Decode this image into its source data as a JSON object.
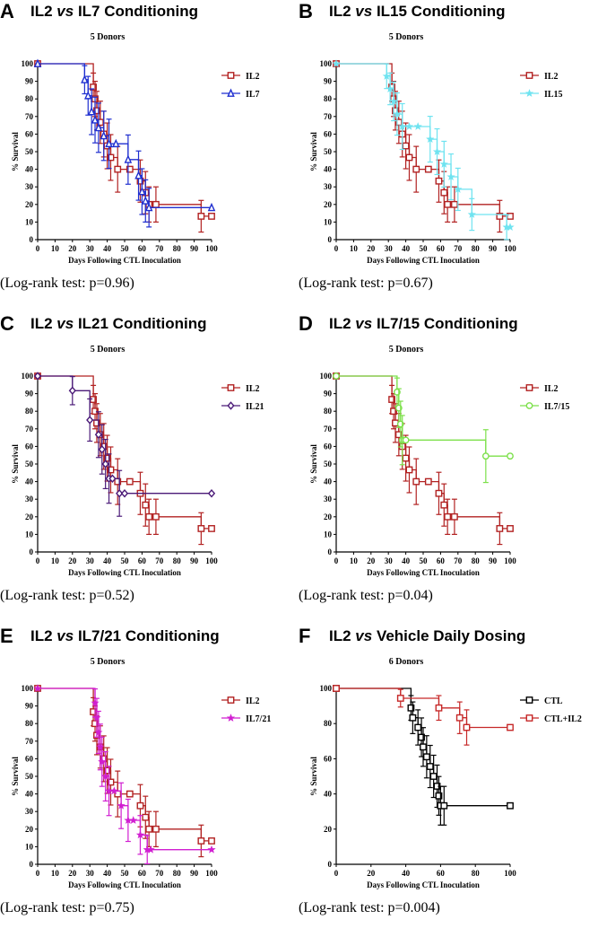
{
  "panels": [
    {
      "letter": "A",
      "title_a": "IL2 ",
      "title_vs": "vs",
      "title_b": " IL7 Conditioning",
      "donors": "5 Donors",
      "logrank": "(Log-rank test: p=0.96)"
    },
    {
      "letter": "B",
      "title_a": "IL2 ",
      "title_vs": "vs",
      "title_b": " IL15 Conditioning",
      "donors": "5 Donors",
      "logrank": "(Log-rank test: p=0.67)"
    },
    {
      "letter": "C",
      "title_a": "IL2 ",
      "title_vs": "vs",
      "title_b": " IL21 Conditioning",
      "donors": "5 Donors",
      "logrank": "(Log-rank test: p=0.52)"
    },
    {
      "letter": "D",
      "title_a": "IL2 ",
      "title_vs": "vs",
      "title_b": " IL7/15 Conditioning",
      "donors": "5 Donors",
      "logrank": "(Log-rank test: p=0.04)"
    },
    {
      "letter": "E",
      "title_a": "IL2 ",
      "title_vs": "vs",
      "title_b": " IL7/21 Conditioning",
      "donors": "5 Donors",
      "logrank": "(Log-rank test: p=0.75)"
    },
    {
      "letter": "F",
      "title_a": "IL2 ",
      "title_vs": "vs",
      "title_b": " Vehicle Daily Dosing",
      "donors": "6 Donors",
      "logrank": "(Log-rank test: p=0.004)"
    }
  ],
  "chart_data": [
    {
      "type": "line",
      "title": "5 Donors",
      "xlabel": "Days Following CTL Inoculation",
      "ylabel": "% Survival",
      "xlim": [
        0,
        100
      ],
      "ylim": [
        0,
        100
      ],
      "xticks": [
        0,
        10,
        20,
        30,
        40,
        50,
        60,
        70,
        80,
        90,
        100
      ],
      "yticks": [
        0,
        10,
        20,
        30,
        40,
        50,
        60,
        70,
        80,
        90,
        100
      ],
      "legend_position": "top-right",
      "series": [
        {
          "name": "IL2",
          "color": "#b22222",
          "marker": "square",
          "x": [
            0,
            32,
            33,
            34,
            36,
            38,
            40,
            42,
            46,
            53,
            59,
            62,
            64,
            68,
            94,
            100
          ],
          "y": [
            100,
            86.7,
            80,
            73.3,
            66.7,
            60,
            53.3,
            46.7,
            40,
            40,
            33.3,
            26.7,
            20,
            20,
            13.3,
            13.3
          ],
          "err": [
            0,
            8,
            10,
            11,
            12,
            13,
            13,
            13,
            13,
            0,
            12,
            12,
            10,
            10,
            9,
            0
          ]
        },
        {
          "name": "IL7",
          "color": "#1f2fd0",
          "marker": "triangle",
          "x": [
            0,
            27,
            29,
            31,
            33,
            35,
            38,
            41,
            45,
            52,
            58,
            60,
            62,
            64,
            100
          ],
          "y": [
            100,
            90.9,
            81.8,
            72.7,
            68,
            63.6,
            59,
            54.5,
            54.5,
            45.5,
            36.4,
            27.3,
            22,
            18.2,
            18.2
          ],
          "err": [
            0,
            8,
            11,
            13,
            13,
            14,
            14,
            14,
            0,
            14,
            14,
            13,
            12,
            11,
            0
          ]
        }
      ]
    },
    {
      "type": "line",
      "title": "5 Donors",
      "xlabel": "Days Following CTL Inoculation",
      "ylabel": "% Survival",
      "xlim": [
        0,
        100
      ],
      "ylim": [
        0,
        100
      ],
      "xticks": [
        0,
        10,
        20,
        30,
        40,
        50,
        60,
        70,
        80,
        90,
        100
      ],
      "yticks": [
        0,
        10,
        20,
        30,
        40,
        50,
        60,
        70,
        80,
        90,
        100
      ],
      "legend_position": "top-right",
      "series": [
        {
          "name": "IL2",
          "color": "#b22222",
          "marker": "square",
          "x": [
            0,
            32,
            33,
            34,
            36,
            38,
            40,
            42,
            46,
            53,
            59,
            62,
            64,
            68,
            94,
            100
          ],
          "y": [
            100,
            86.7,
            80,
            73.3,
            66.7,
            60,
            53.3,
            46.7,
            40,
            40,
            33.3,
            26.7,
            20,
            20,
            13.3,
            13.3
          ],
          "err": [
            0,
            8,
            10,
            11,
            12,
            13,
            13,
            13,
            13,
            0,
            12,
            12,
            10,
            10,
            9,
            0
          ]
        },
        {
          "name": "IL15",
          "color": "#6fe3f0",
          "marker": "star",
          "x": [
            0,
            29,
            31,
            33,
            35,
            38,
            42,
            47,
            54,
            58,
            62,
            66,
            70,
            78,
            98,
            100
          ],
          "y": [
            100,
            92.9,
            85.7,
            78.6,
            71.4,
            64.3,
            64.3,
            64.3,
            57.1,
            50,
            42.9,
            35.7,
            28.6,
            14.3,
            7.1,
            7.1
          ],
          "err": [
            0,
            7,
            9,
            11,
            12,
            13,
            0,
            0,
            13,
            13,
            13,
            13,
            12,
            9,
            7,
            0
          ]
        }
      ]
    },
    {
      "type": "line",
      "title": "5 Donors",
      "xlabel": "Days Following CTL Inoculation",
      "ylabel": "% Survival",
      "xlim": [
        0,
        100
      ],
      "ylim": [
        0,
        100
      ],
      "xticks": [
        0,
        10,
        20,
        30,
        40,
        50,
        60,
        70,
        80,
        90,
        100
      ],
      "yticks": [
        0,
        10,
        20,
        30,
        40,
        50,
        60,
        70,
        80,
        90,
        100
      ],
      "legend_position": "top-right",
      "series": [
        {
          "name": "IL2",
          "color": "#b22222",
          "marker": "square",
          "x": [
            0,
            32,
            33,
            34,
            36,
            38,
            40,
            42,
            46,
            53,
            59,
            62,
            64,
            68,
            94,
            100
          ],
          "y": [
            100,
            86.7,
            80,
            73.3,
            66.7,
            60,
            53.3,
            46.7,
            40,
            40,
            33.3,
            26.7,
            20,
            20,
            13.3,
            13.3
          ],
          "err": [
            0,
            8,
            10,
            11,
            12,
            13,
            13,
            13,
            13,
            0,
            12,
            12,
            10,
            10,
            9,
            0
          ]
        },
        {
          "name": "IL21",
          "color": "#4b1a78",
          "marker": "diamond",
          "x": [
            0,
            20,
            30,
            35,
            37,
            39,
            41,
            43,
            47,
            50,
            100
          ],
          "y": [
            100,
            91.7,
            75,
            66.7,
            58.3,
            50,
            41.7,
            41.7,
            33.3,
            33.3,
            33.3
          ],
          "err": [
            0,
            8,
            12,
            13,
            14,
            14,
            14,
            0,
            13,
            0,
            0
          ]
        }
      ]
    },
    {
      "type": "line",
      "title": "5 Donors",
      "xlabel": "Days Following CTL Inoculation",
      "ylabel": "% Survival",
      "xlim": [
        0,
        100
      ],
      "ylim": [
        0,
        100
      ],
      "xticks": [
        0,
        10,
        20,
        30,
        40,
        50,
        60,
        70,
        80,
        90,
        100
      ],
      "yticks": [
        0,
        10,
        20,
        30,
        40,
        50,
        60,
        70,
        80,
        90,
        100
      ],
      "legend_position": "top-right",
      "series": [
        {
          "name": "IL2",
          "color": "#b22222",
          "marker": "square",
          "x": [
            0,
            32,
            33,
            34,
            36,
            38,
            40,
            42,
            46,
            53,
            59,
            62,
            64,
            68,
            94,
            100
          ],
          "y": [
            100,
            86.7,
            80,
            73.3,
            66.7,
            60,
            53.3,
            46.7,
            40,
            40,
            33.3,
            26.7,
            20,
            20,
            13.3,
            13.3
          ],
          "err": [
            0,
            8,
            10,
            11,
            12,
            13,
            13,
            13,
            13,
            0,
            12,
            12,
            10,
            10,
            9,
            0
          ]
        },
        {
          "name": "IL7/15",
          "color": "#7ce04a",
          "marker": "circle",
          "x": [
            0,
            35,
            36,
            37,
            38,
            39,
            40,
            86,
            100
          ],
          "y": [
            100,
            90.9,
            81.8,
            72.7,
            63.6,
            63.6,
            63.6,
            54.5,
            54.5
          ],
          "err": [
            0,
            8,
            11,
            13,
            14,
            0,
            0,
            15,
            0
          ]
        }
      ]
    },
    {
      "type": "line",
      "title": "5 Donors",
      "xlabel": "Days Following CTL Inoculation",
      "ylabel": "% Survival",
      "xlim": [
        0,
        100
      ],
      "ylim": [
        0,
        100
      ],
      "xticks": [
        0,
        10,
        20,
        30,
        40,
        50,
        60,
        70,
        80,
        90,
        100
      ],
      "yticks": [
        0,
        10,
        20,
        30,
        40,
        50,
        60,
        70,
        80,
        90,
        100
      ],
      "legend_position": "top-right",
      "series": [
        {
          "name": "IL2",
          "color": "#b22222",
          "marker": "square",
          "x": [
            0,
            32,
            33,
            34,
            36,
            38,
            40,
            42,
            46,
            53,
            59,
            62,
            64,
            68,
            94,
            100
          ],
          "y": [
            100,
            86.7,
            80,
            73.3,
            66.7,
            60,
            53.3,
            46.7,
            40,
            40,
            33.3,
            26.7,
            20,
            20,
            13.3,
            13.3
          ],
          "err": [
            0,
            8,
            10,
            11,
            12,
            13,
            13,
            13,
            13,
            0,
            12,
            12,
            10,
            10,
            9,
            0
          ]
        },
        {
          "name": "IL7/21",
          "color": "#d11fd1",
          "marker": "star",
          "x": [
            0,
            33,
            34,
            35,
            36,
            37,
            39,
            41,
            44,
            48,
            52,
            55,
            59,
            63,
            65,
            100
          ],
          "y": [
            100,
            91.7,
            83.3,
            75,
            66.7,
            58.3,
            50,
            41.7,
            41.7,
            33.3,
            25,
            25,
            16.7,
            8.3,
            8.3,
            8.3
          ],
          "err": [
            0,
            8,
            11,
            12,
            13,
            14,
            14,
            14,
            0,
            13,
            12,
            0,
            11,
            8,
            0,
            0
          ]
        }
      ]
    },
    {
      "type": "line",
      "title": "6 Donors",
      "xlabel": "Days Following CTL Inoculation",
      "ylabel": "% Survival",
      "xlim": [
        0,
        100
      ],
      "ylim": [
        0,
        100
      ],
      "xticks": [
        0,
        20,
        40,
        60,
        80,
        100
      ],
      "yticks": [
        0,
        20,
        40,
        60,
        80,
        100
      ],
      "legend_position": "top-right",
      "series": [
        {
          "name": "CTL",
          "color": "#000000",
          "marker": "square",
          "x": [
            0,
            43,
            44,
            47,
            49,
            50,
            52,
            54,
            56,
            58,
            59,
            60,
            62,
            100
          ],
          "y": [
            100,
            88.9,
            83.3,
            77.8,
            72.2,
            66.7,
            61.1,
            55.6,
            50,
            44.4,
            38.9,
            33.3,
            33.3,
            33.3
          ],
          "err": [
            0,
            7,
            9,
            10,
            11,
            11,
            12,
            12,
            12,
            12,
            11,
            11,
            11,
            0
          ]
        },
        {
          "name": "CTL+IL2",
          "color": "#c62828",
          "marker": "square",
          "x": [
            0,
            37,
            59,
            71,
            75,
            100
          ],
          "y": [
            100,
            94.4,
            88.9,
            83.3,
            77.8,
            77.8
          ],
          "err": [
            0,
            5,
            7,
            9,
            10,
            0
          ]
        }
      ]
    }
  ]
}
